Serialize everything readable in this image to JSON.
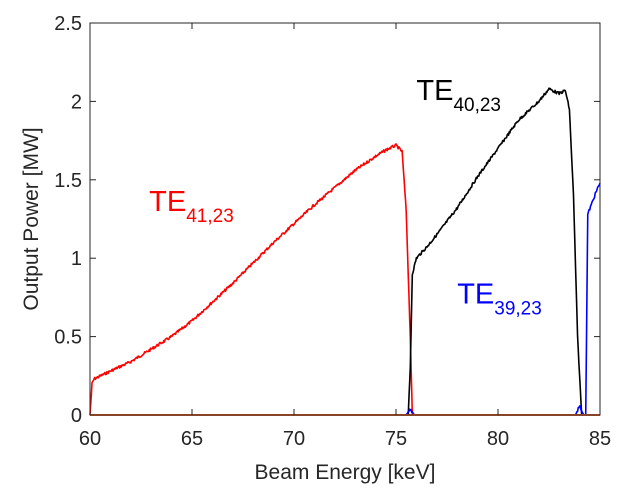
{
  "chart_data": {
    "type": "line",
    "title": "",
    "xlabel": "Beam Energy [keV]",
    "ylabel": "Output Power [MW]",
    "xlim": [
      60,
      85
    ],
    "ylim": [
      0,
      2.5
    ],
    "xticks": [
      "60",
      "65",
      "70",
      "75",
      "80",
      "85"
    ],
    "yticks": [
      "0",
      "0.5",
      "1",
      "1.5",
      "2",
      "2.5"
    ],
    "grid": false,
    "legend": "none",
    "series": [
      {
        "name": "",
        "color": "#ff0000",
        "x": [
          60.0,
          60.1,
          60.2,
          61,
          62,
          63,
          64,
          65,
          66,
          67,
          68,
          69,
          70,
          71,
          72,
          73,
          74,
          74.5,
          75.0,
          75.3,
          75.5,
          75.7,
          75.8
        ],
        "y": [
          0.0,
          0.2,
          0.23,
          0.28,
          0.34,
          0.42,
          0.5,
          0.6,
          0.72,
          0.84,
          0.97,
          1.1,
          1.22,
          1.34,
          1.45,
          1.56,
          1.65,
          1.69,
          1.72,
          1.68,
          1.3,
          0.5,
          0.0
        ]
      },
      {
        "name": "",
        "color": "#000000",
        "x": [
          75.6,
          75.7,
          75.8,
          76,
          76.5,
          77,
          78,
          79,
          80,
          81,
          82,
          82.5,
          83,
          83.3,
          83.5,
          83.7,
          83.9,
          84.1
        ],
        "y": [
          0.0,
          0.3,
          0.9,
          1.0,
          1.07,
          1.15,
          1.32,
          1.52,
          1.7,
          1.88,
          2.0,
          2.08,
          2.05,
          2.07,
          1.95,
          1.4,
          0.5,
          0.0
        ]
      },
      {
        "name": "",
        "color": "#0000ff",
        "x": [
          75.5,
          75.7,
          75.9,
          83.8,
          84.0,
          84.2,
          84.3,
          84.4,
          84.6,
          84.8,
          85.0
        ],
        "y": [
          0.0,
          0.04,
          0.0,
          0.0,
          0.06,
          0.0,
          0.0,
          1.28,
          1.35,
          1.42,
          1.48
        ]
      },
      {
        "name": "",
        "color": "#e8622a",
        "x": [
          60,
          85
        ],
        "y": [
          0.0,
          0.0
        ]
      }
    ],
    "annotations": [
      {
        "text": "TE",
        "sub": "41,23",
        "color": "#ff0000",
        "x": 62.9,
        "y": 1.3
      },
      {
        "text": "TE",
        "sub": "40,23",
        "color": "#000000",
        "x": 76.0,
        "y": 2.01
      },
      {
        "text": "TE",
        "sub": "39,23",
        "color": "#0000ff",
        "x": 78.0,
        "y": 0.71
      }
    ]
  }
}
